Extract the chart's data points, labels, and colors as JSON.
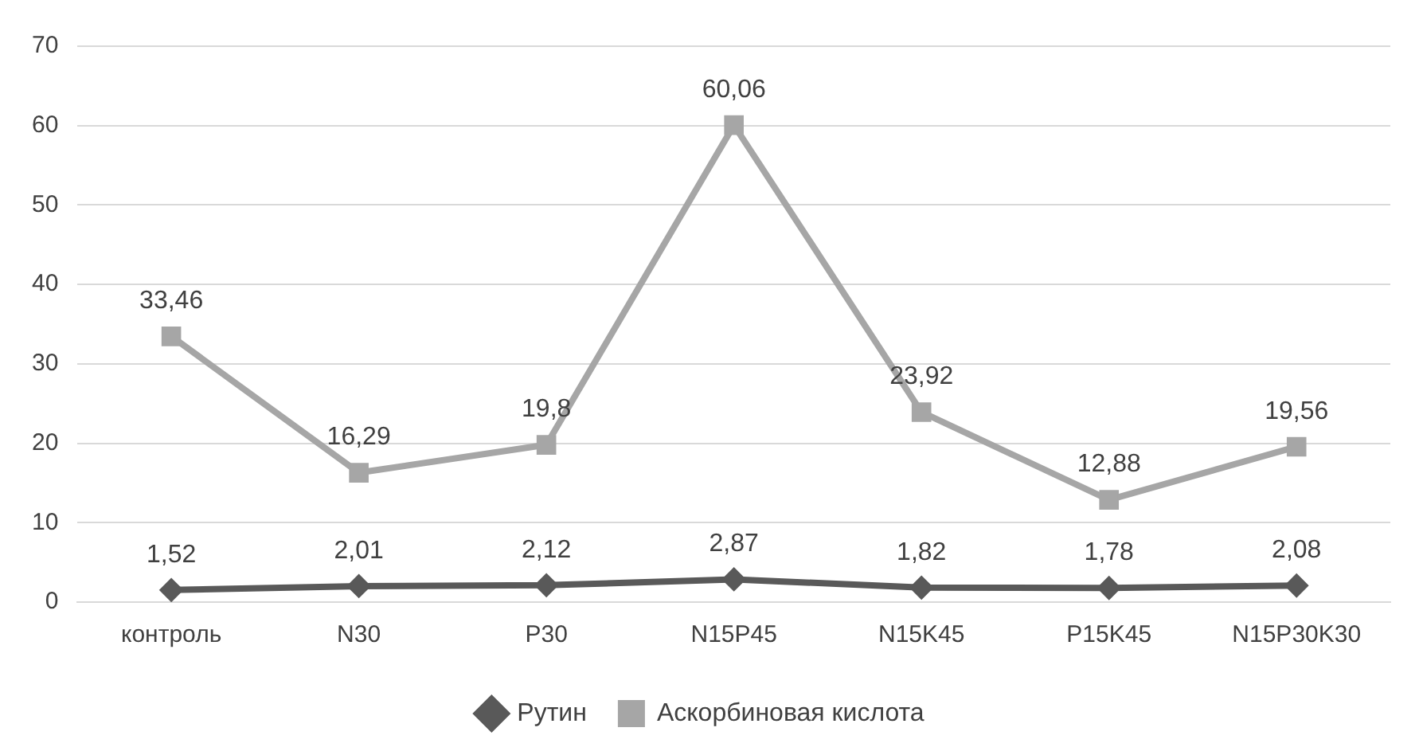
{
  "chart_data": {
    "type": "line",
    "categories": [
      "контроль",
      "N30",
      "P30",
      "N15P45",
      "N15K45",
      "P15K45",
      "N15P30K30"
    ],
    "series": [
      {
        "name": "Рутин",
        "color": "#595959",
        "marker": "diamond",
        "values": [
          1.52,
          2.01,
          2.12,
          2.87,
          1.82,
          1.78,
          2.08
        ],
        "value_labels": [
          "1,52",
          "2,01",
          "2,12",
          "2,87",
          "1,82",
          "1,78",
          "2,08"
        ]
      },
      {
        "name": "Аскорбиновая кислота",
        "color": "#a6a6a6",
        "marker": "square",
        "values": [
          33.46,
          16.29,
          19.8,
          60.06,
          23.92,
          12.88,
          19.56
        ],
        "value_labels": [
          "33,46",
          "16,29",
          "19,8",
          "60,06",
          "23,92",
          "12,88",
          "19,56"
        ]
      }
    ],
    "ylim": [
      0,
      70
    ],
    "yticks": [
      0,
      10,
      20,
      30,
      40,
      50,
      60,
      70
    ],
    "grid": "y",
    "legend": "bottom",
    "line_style": "solid"
  }
}
